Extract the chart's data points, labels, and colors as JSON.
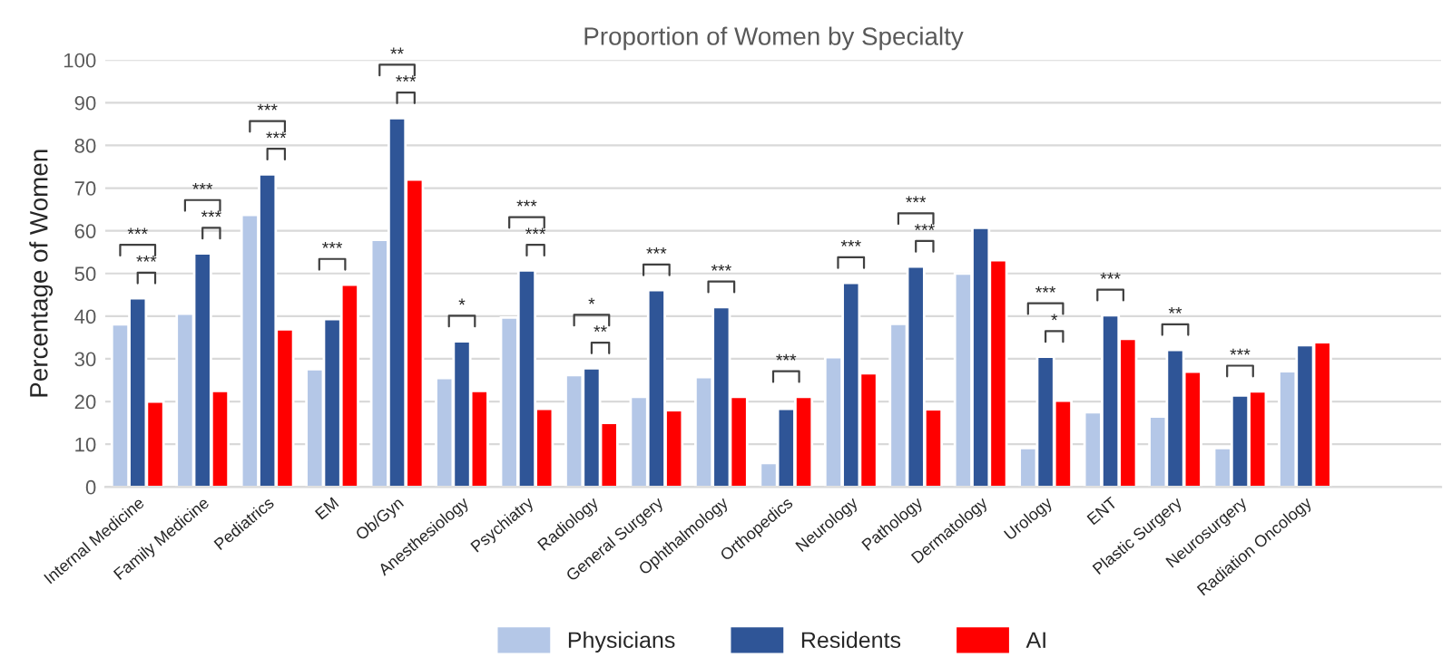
{
  "chart_data": {
    "type": "bar",
    "title": "Proportion of Women by Specialty",
    "ylabel": "Percentage of Women",
    "categories": [
      "Internal Medicine",
      "Family Medicine",
      "Pediatrics",
      "EM",
      "Ob/Gyn",
      "Anesthesiology",
      "Psychiatry",
      "Radiology",
      "General Surgery",
      "Ophthalmology",
      "Orthopedics",
      "Neurology",
      "Pathology",
      "Dermatology",
      "Urology",
      "ENT",
      "Plastic Surgery",
      "Neurosurgery",
      "Radiation Oncology"
    ],
    "series": [
      {
        "name": "Physicians",
        "color": "#b4c7e7",
        "values": [
          38.1,
          40.6,
          63.7,
          27.6,
          57.9,
          25.5,
          39.7,
          26.2,
          21.1,
          25.7,
          5.6,
          30.4,
          38.2,
          50.0,
          9.1,
          17.5,
          16.5,
          9.1,
          27.1
        ]
      },
      {
        "name": "Residents",
        "color": "#2f5597",
        "values": [
          44.2,
          54.7,
          73.2,
          39.3,
          86.4,
          34.1,
          50.7,
          27.8,
          46.1,
          42.1,
          18.3,
          47.8,
          51.6,
          60.7,
          30.5,
          40.2,
          32.1,
          21.4,
          33.2
        ]
      },
      {
        "name": "AI",
        "color": "#ff0000",
        "values": [
          20.0,
          22.5,
          36.9,
          47.4,
          72.0,
          22.5,
          18.3,
          15.0,
          18.0,
          21.1,
          21.1,
          26.6,
          18.2,
          53.1,
          20.2,
          34.7,
          27.0,
          22.4,
          33.9
        ]
      }
    ],
    "ylim": [
      0,
      100
    ],
    "yticks": [
      0,
      10,
      20,
      30,
      40,
      50,
      60,
      70,
      80,
      90,
      100
    ],
    "grid": "y",
    "legend": "bottom",
    "annotations": [
      "***",
      {
        "text": "***",
        "x": "Internal Medicine",
        "y": 44.2
      },
      "***",
      {
        "text": "***",
        "x": "Family Medicine",
        "y": 54.7
      },
      "***",
      {
        "text": "***",
        "x": "Pediatrics",
        "y": 73.2
      },
      {
        "text": "***",
        "x": "EM",
        "y": 47.4
      },
      "**",
      {
        "text": "***",
        "x": "Ob/Gyn",
        "y": 86.4
      },
      {
        "text": "*",
        "x": "Anesthesiology",
        "y": 34.1
      },
      "***",
      {
        "text": "***",
        "x": "Psychiatry",
        "y": 50.7
      },
      "*",
      {
        "text": "**",
        "x": "Radiology",
        "y": 27.8
      },
      {
        "text": "***",
        "x": "General Surgery",
        "y": 46.1
      },
      {
        "text": "***",
        "x": "Ophthalmology",
        "y": 42.1
      },
      {
        "text": "***",
        "x": "Orthopedics",
        "y": 21.1
      },
      {
        "text": "***",
        "x": "Neurology",
        "y": 47.8
      },
      "***",
      {
        "text": "***",
        "x": "Pathology",
        "y": 51.6
      },
      "***",
      {
        "text": "*",
        "x": "Urology",
        "y": 30.5
      },
      {
        "text": "***",
        "x": "ENT",
        "y": 40.2
      },
      {
        "text": "**",
        "x": "Plastic Surgery",
        "y": 32.1
      },
      {
        "text": "***",
        "x": "Neurosurgery",
        "y": 22.4
      }
    ]
  }
}
